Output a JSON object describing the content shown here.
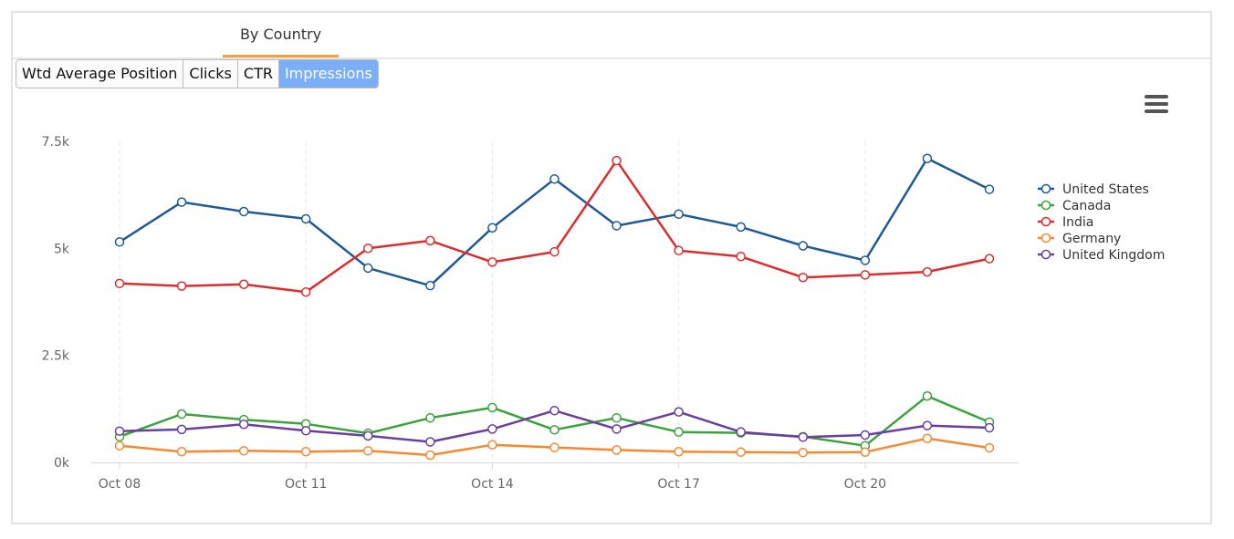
{
  "tabs": [
    {
      "label": "By Country",
      "active": true
    }
  ],
  "metric_buttons": [
    {
      "label": "Wtd Average Position",
      "active": false
    },
    {
      "label": "Clicks",
      "active": false
    },
    {
      "label": "CTR",
      "active": false
    },
    {
      "label": "Impressions",
      "active": true
    }
  ],
  "menu_icon": "hamburger-menu-icon",
  "chart_data": {
    "type": "line",
    "title": "",
    "xlabel": "",
    "ylabel": "",
    "x": [
      "Oct 08",
      "Oct 09",
      "Oct 10",
      "Oct 11",
      "Oct 12",
      "Oct 13",
      "Oct 14",
      "Oct 15",
      "Oct 16",
      "Oct 17",
      "Oct 18",
      "Oct 19",
      "Oct 20",
      "Oct 21",
      "Oct 22"
    ],
    "x_tick_labels": [
      "Oct 08",
      "Oct 11",
      "Oct 14",
      "Oct 17",
      "Oct 20"
    ],
    "ylim": [
      0,
      7500
    ],
    "y_ticks": [
      0,
      2500,
      5000,
      7500
    ],
    "y_tick_labels": [
      "0k",
      "2.5k",
      "5k",
      "7.5k"
    ],
    "grid": "vertical dashed",
    "legend_position": "right",
    "series": [
      {
        "name": "United States",
        "color": "#1f5a96",
        "values": [
          5150,
          6080,
          5860,
          5690,
          4540,
          4130,
          5480,
          6620,
          5530,
          5800,
          5500,
          5060,
          4720,
          7100,
          6380
        ]
      },
      {
        "name": "Canada",
        "color": "#3aa33a",
        "values": [
          600,
          1130,
          1000,
          900,
          680,
          1040,
          1280,
          760,
          1040,
          710,
          690,
          600,
          390,
          1550,
          940
        ]
      },
      {
        "name": "India",
        "color": "#dc2d2d",
        "values": [
          4180,
          4120,
          4160,
          3980,
          5000,
          5180,
          4680,
          4920,
          7050,
          4950,
          4810,
          4320,
          4380,
          4450,
          4760
        ]
      },
      {
        "name": "Germany",
        "color": "#f7882f",
        "values": [
          390,
          250,
          270,
          250,
          270,
          170,
          410,
          350,
          290,
          250,
          240,
          230,
          240,
          560,
          340
        ]
      },
      {
        "name": "United Kingdom",
        "color": "#6a3fa0",
        "values": [
          730,
          770,
          890,
          740,
          620,
          480,
          780,
          1210,
          780,
          1180,
          710,
          590,
          640,
          860,
          810
        ]
      }
    ]
  }
}
